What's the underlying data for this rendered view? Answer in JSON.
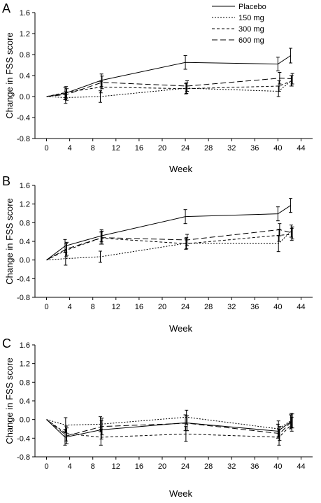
{
  "chart_data": [
    {
      "type": "line",
      "panel_label": "A",
      "xlabel": "Week",
      "ylabel": "Change in FSS score",
      "xlim": [
        -2,
        46
      ],
      "ylim": [
        -0.8,
        1.6
      ],
      "xticks": [
        0,
        4,
        8,
        12,
        16,
        20,
        24,
        28,
        32,
        36,
        40,
        44
      ],
      "yticks": [
        -0.8,
        -0.4,
        0.0,
        0.4,
        0.8,
        1.2,
        1.6
      ],
      "ytick_labels": [
        "-0.8",
        "-0.4",
        "0.0",
        "0.4",
        "0.8",
        "1.2",
        "1.6"
      ],
      "legend_position": "top-right",
      "series": [
        {
          "name": "Placebo",
          "dash": "",
          "points": [
            {
              "x": 0,
              "y": 0,
              "err": 0
            },
            {
              "x": 3.2,
              "y": 0.06,
              "err": 0.12
            },
            {
              "x": 9.5,
              "y": 0.31,
              "err": 0.12
            },
            {
              "x": 24,
              "y": 0.65,
              "err": 0.13
            },
            {
              "x": 40,
              "y": 0.62,
              "err": 0.13
            },
            {
              "x": 42.2,
              "y": 0.78,
              "err": 0.14
            }
          ]
        },
        {
          "name": "150 mg",
          "dash": "2,2",
          "points": [
            {
              "x": 0,
              "y": 0,
              "err": 0
            },
            {
              "x": 3.3,
              "y": -0.02,
              "err": 0.11
            },
            {
              "x": 9.3,
              "y": 0.0,
              "err": 0.11
            },
            {
              "x": 24.2,
              "y": 0.16,
              "err": 0.1
            },
            {
              "x": 40.1,
              "y": 0.1,
              "err": 0.1
            },
            {
              "x": 42.3,
              "y": 0.3,
              "err": 0.1
            }
          ]
        },
        {
          "name": "300 mg",
          "dash": "4,3",
          "points": [
            {
              "x": 0,
              "y": 0,
              "err": 0
            },
            {
              "x": 3.4,
              "y": 0.08,
              "err": 0.11
            },
            {
              "x": 9.4,
              "y": 0.18,
              "err": 0.11
            },
            {
              "x": 24.1,
              "y": 0.15,
              "err": 0.1
            },
            {
              "x": 40.2,
              "y": 0.2,
              "err": 0.1
            },
            {
              "x": 42.4,
              "y": 0.3,
              "err": 0.1
            }
          ]
        },
        {
          "name": "600 mg",
          "dash": "8,4",
          "points": [
            {
              "x": 0,
              "y": 0,
              "err": 0
            },
            {
              "x": 3.5,
              "y": 0.04,
              "err": 0.11
            },
            {
              "x": 9.6,
              "y": 0.27,
              "err": 0.12
            },
            {
              "x": 24.3,
              "y": 0.2,
              "err": 0.1
            },
            {
              "x": 40.3,
              "y": 0.35,
              "err": 0.11
            },
            {
              "x": 42.5,
              "y": 0.34,
              "err": 0.1
            }
          ]
        }
      ]
    },
    {
      "type": "line",
      "panel_label": "B",
      "xlabel": "Week",
      "ylabel": "Change in FSS score",
      "xlim": [
        -2,
        46
      ],
      "ylim": [
        -0.8,
        1.6
      ],
      "xticks": [
        0,
        4,
        8,
        12,
        16,
        20,
        24,
        28,
        32,
        36,
        40,
        44
      ],
      "yticks": [
        -0.8,
        -0.4,
        0.0,
        0.4,
        0.8,
        1.2,
        1.6
      ],
      "ytick_labels": [
        "-0.8",
        "-0.4",
        "0.0",
        "0.4",
        "0.8",
        "1.2",
        "1.6"
      ],
      "series": [
        {
          "name": "Placebo",
          "dash": "",
          "points": [
            {
              "x": 0,
              "y": 0,
              "err": 0
            },
            {
              "x": 3.2,
              "y": 0.3,
              "err": 0.14
            },
            {
              "x": 9.5,
              "y": 0.52,
              "err": 0.13
            },
            {
              "x": 24,
              "y": 0.93,
              "err": 0.15
            },
            {
              "x": 40,
              "y": 0.99,
              "err": 0.15
            },
            {
              "x": 42.2,
              "y": 1.17,
              "err": 0.15
            }
          ]
        },
        {
          "name": "150 mg",
          "dash": "2,2",
          "points": [
            {
              "x": 0,
              "y": 0,
              "err": 0
            },
            {
              "x": 3.3,
              "y": 0.03,
              "err": 0.14
            },
            {
              "x": 9.3,
              "y": 0.07,
              "err": 0.12
            },
            {
              "x": 24.2,
              "y": 0.36,
              "err": 0.12
            },
            {
              "x": 40.1,
              "y": 0.35,
              "err": 0.17
            },
            {
              "x": 42.3,
              "y": 0.62,
              "err": 0.13
            }
          ]
        },
        {
          "name": "300 mg",
          "dash": "4,3",
          "points": [
            {
              "x": 0,
              "y": 0,
              "err": 0
            },
            {
              "x": 3.4,
              "y": 0.21,
              "err": 0.14
            },
            {
              "x": 9.4,
              "y": 0.47,
              "err": 0.13
            },
            {
              "x": 24.1,
              "y": 0.35,
              "err": 0.12
            },
            {
              "x": 40.2,
              "y": 0.53,
              "err": 0.13
            },
            {
              "x": 42.4,
              "y": 0.55,
              "err": 0.13
            }
          ]
        },
        {
          "name": "600 mg",
          "dash": "8,4",
          "points": [
            {
              "x": 0,
              "y": 0,
              "err": 0
            },
            {
              "x": 3.5,
              "y": 0.24,
              "err": 0.14
            },
            {
              "x": 9.6,
              "y": 0.48,
              "err": 0.14
            },
            {
              "x": 24.3,
              "y": 0.43,
              "err": 0.12
            },
            {
              "x": 40.3,
              "y": 0.65,
              "err": 0.13
            },
            {
              "x": 42.5,
              "y": 0.58,
              "err": 0.13
            }
          ]
        }
      ]
    },
    {
      "type": "line",
      "panel_label": "C",
      "xlabel": "Week",
      "ylabel": "Change in FSS score",
      "xlim": [
        -2,
        46
      ],
      "ylim": [
        -0.8,
        1.6
      ],
      "xticks": [
        0,
        4,
        8,
        12,
        16,
        20,
        24,
        28,
        32,
        36,
        40,
        44
      ],
      "yticks": [
        -0.8,
        -0.4,
        0.0,
        0.4,
        0.8,
        1.2,
        1.6
      ],
      "ytick_labels": [
        "-0.8",
        "-0.4",
        "0.0",
        "0.4",
        "0.8",
        "1.2",
        "1.6"
      ],
      "series": [
        {
          "name": "Placebo",
          "dash": "",
          "points": [
            {
              "x": 0,
              "y": 0,
              "err": 0
            },
            {
              "x": 3.2,
              "y": -0.38,
              "err": 0.17
            },
            {
              "x": 9.5,
              "y": -0.22,
              "err": 0.2
            },
            {
              "x": 24,
              "y": -0.07,
              "err": 0.17
            },
            {
              "x": 40,
              "y": -0.25,
              "err": 0.15
            },
            {
              "x": 42.2,
              "y": -0.05,
              "err": 0.15
            }
          ]
        },
        {
          "name": "150 mg",
          "dash": "2,2",
          "points": [
            {
              "x": 0,
              "y": 0,
              "err": 0
            },
            {
              "x": 3.3,
              "y": -0.12,
              "err": 0.16
            },
            {
              "x": 9.3,
              "y": -0.1,
              "err": 0.16
            },
            {
              "x": 24.2,
              "y": 0.05,
              "err": 0.15
            },
            {
              "x": 40.1,
              "y": -0.2,
              "err": 0.17
            },
            {
              "x": 42.3,
              "y": -0.02,
              "err": 0.15
            }
          ]
        },
        {
          "name": "300 mg",
          "dash": "4,3",
          "points": [
            {
              "x": 0,
              "y": 0,
              "err": 0
            },
            {
              "x": 3.4,
              "y": -0.3,
              "err": 0.16
            },
            {
              "x": 9.4,
              "y": -0.38,
              "err": 0.17
            },
            {
              "x": 24.1,
              "y": -0.31,
              "err": 0.16
            },
            {
              "x": 40.2,
              "y": -0.38,
              "err": 0.17
            },
            {
              "x": 42.4,
              "y": -0.1,
              "err": 0.15
            }
          ]
        },
        {
          "name": "600 mg",
          "dash": "8,4",
          "points": [
            {
              "x": 0,
              "y": 0,
              "err": 0
            },
            {
              "x": 3.5,
              "y": -0.35,
              "err": 0.17
            },
            {
              "x": 9.6,
              "y": -0.15,
              "err": 0.18
            },
            {
              "x": 24.3,
              "y": -0.08,
              "err": 0.16
            },
            {
              "x": 40.3,
              "y": -0.3,
              "err": 0.15
            },
            {
              "x": 42.5,
              "y": -0.03,
              "err": 0.15
            }
          ]
        }
      ]
    }
  ]
}
